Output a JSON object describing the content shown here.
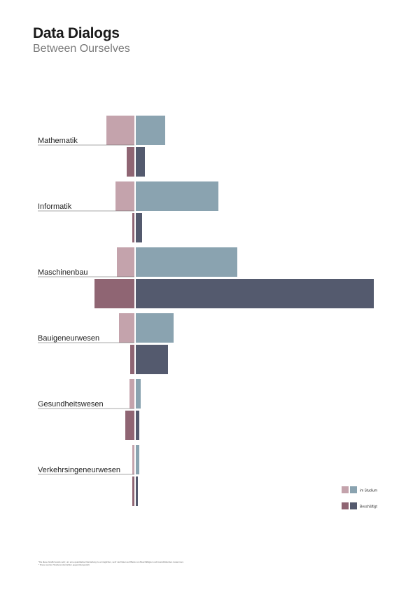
{
  "header": {
    "title": "Data Dialogs",
    "subtitle": "Between Ourselves"
  },
  "colors": {
    "studium_left": "#c4a3ac",
    "studium_right": "#8aa3b0",
    "beschaeftigt_left": "#8f6573",
    "beschaeftigt_right": "#545a6e",
    "label_line": "#555555"
  },
  "legend": {
    "items": [
      {
        "key": "studium",
        "label": "im Studium"
      },
      {
        "key": "beschaeftigt",
        "label": "Beschäftigt"
      }
    ]
  },
  "footnote": {
    "line1": "*Da diese Grafik bereits sehr, um eine quantitative Darstellung zu ermöglichen, sehr viel Daten auf Basis von Beschäftigten und Auszubildenden zusammen.",
    "line2": "* Diese werden Studierendenzahlen gegenübergestellt."
  },
  "chart_data": {
    "type": "bar",
    "layout": "diverging-paired",
    "categories": [
      "Mathematik",
      "Informatik",
      "Maschinenbau",
      "Bauigeneurwesen",
      "Gesundheitswesen",
      "Verkehrsingeneurwesen"
    ],
    "series": [
      {
        "name": "im Studium",
        "group": "studium",
        "side": "left",
        "values": [
          40,
          27,
          25,
          22,
          7,
          3
        ]
      },
      {
        "name": "im Studium",
        "group": "studium",
        "side": "right",
        "values": [
          42,
          118,
          145,
          54,
          7,
          5
        ]
      },
      {
        "name": "Beschäftigt",
        "group": "beschaeftigt",
        "side": "left",
        "values": [
          11,
          3,
          57,
          6,
          13,
          3
        ]
      },
      {
        "name": "Beschäftigt",
        "group": "beschaeftigt",
        "side": "right",
        "values": [
          13,
          9,
          340,
          46,
          5,
          3
        ]
      }
    ],
    "legend_position": "bottom-right",
    "grid": false
  }
}
